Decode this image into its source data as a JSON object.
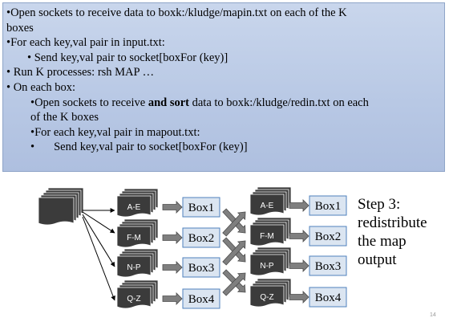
{
  "bullets": {
    "b1": {
      "marker": "•",
      "text": "Open sockets to receive data to boxk:/kludge/mapin.txt on each of the K",
      "cont": "boxes"
    },
    "b2": {
      "marker": "•",
      "text": "For each key,val pair in input.txt:"
    },
    "b2a": {
      "marker": "•",
      "text": " Send key,val pair to socket[boxFor (key)]"
    },
    "b3": {
      "marker": "•",
      "text": " Run K processes: rsh MAP …"
    },
    "b4": {
      "marker": "•",
      "text": " On each box:"
    },
    "b4a": {
      "marker": "•",
      "pre": "Open sockets to receive ",
      "bold": "and sort",
      "post": " data to boxk:/kludge/redin.txt on each",
      "cont": "of the K boxes"
    },
    "b4b": {
      "marker": "•",
      "text": "For each key,val pair in mapout.txt:"
    },
    "b4c": {
      "marker": "•",
      "text": "Send key,val pair to socket[boxFor (key)]"
    }
  },
  "diagram": {
    "partitions_left": [
      "A-E",
      "F-M",
      "N-P",
      "Q-Z"
    ],
    "boxes_left": [
      "Box1",
      "Box2",
      "Box3",
      "Box4"
    ],
    "partitions_right": [
      "A-E",
      "F-M",
      "N-P",
      "Q-Z"
    ],
    "boxes_right": [
      "Box1",
      "Box2",
      "Box3",
      "Box4"
    ]
  },
  "step": {
    "line1": "Step 3:",
    "line2": "redistribute",
    "line3": "the  map",
    "line4": "output"
  },
  "slide_number": "14",
  "colors": {
    "panel_bg": "#b9c9e5",
    "box_fill": "#dbe5f1",
    "box_border": "#4f81bd",
    "arrow_fill": "#7f7f7f",
    "doc_fill": "#3b3b3b"
  }
}
